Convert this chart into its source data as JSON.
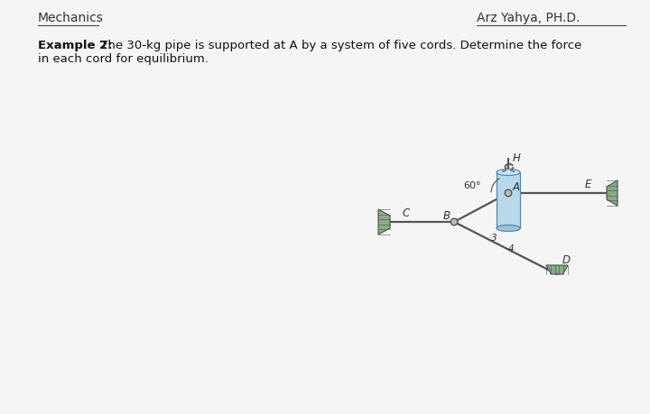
{
  "title_left": "Mechanics",
  "title_right": "Arz Yahya, PH.D.",
  "example_line1": "Example 2: The 30-kg pipe is supported at A by a system of five cords. Determine the force",
  "example_line1_bold": "Example 2:",
  "example_line2": "in each cord for equilibrium.",
  "bg_color": "#f5f5f5",
  "line_color": "#555555",
  "wall_color": "#8aaa8a",
  "pipe_fill": "#b8d8ec",
  "pipe_top_fill": "#cce6f8",
  "pipe_bot_fill": "#9cc4d8",
  "rope_color": "#8a7a6a",
  "label_B": "B",
  "label_A": "A",
  "label_C": "C",
  "label_D": "D",
  "label_E": "E",
  "label_H": "H",
  "angle_label": "60°",
  "ratio_3": "3",
  "ratio_4": "4"
}
